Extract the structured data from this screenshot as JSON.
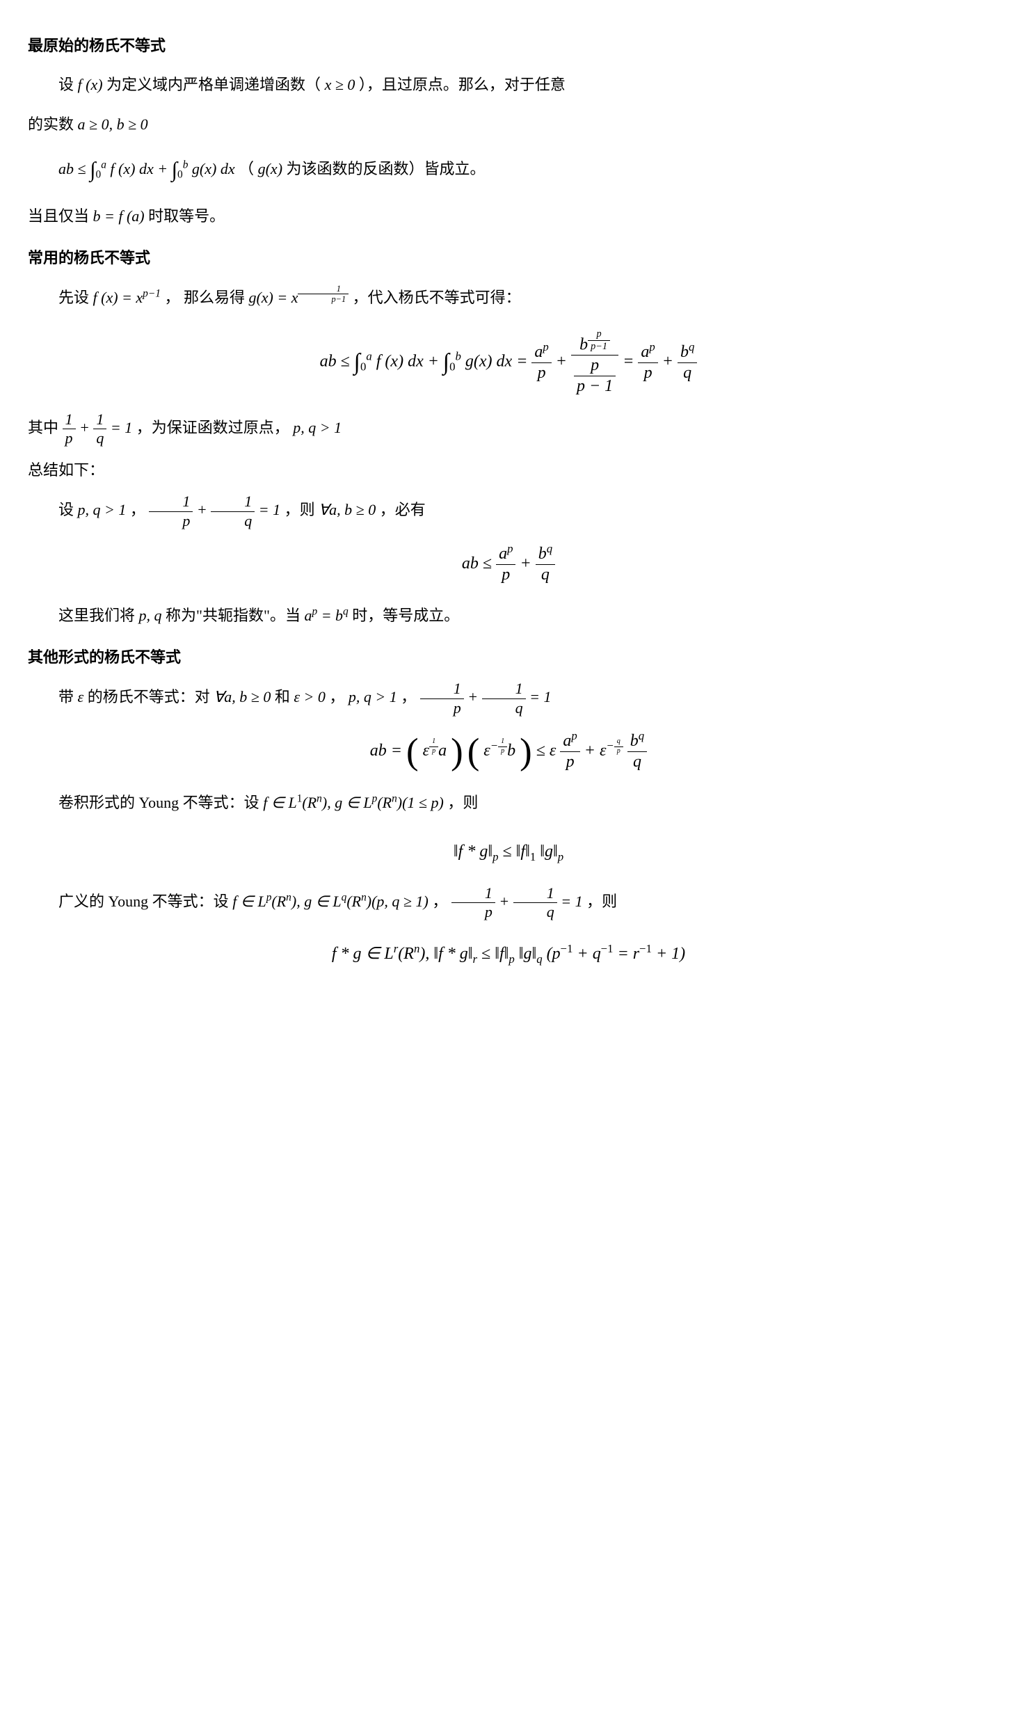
{
  "sec1_title": "最原始的杨氏不等式",
  "sec1_p1_a": "设 ",
  "sec1_p1_b": " 为定义域内严格单调递增函数（",
  "sec1_p1_c": "），且过原点。那么，对于任意",
  "sec1_p2_a": "的实数 ",
  "sec1_p3_a": " （",
  "sec1_p3_b": " 为该函数的反函数）皆成立。",
  "sec1_p4_a": "当且仅当 ",
  "sec1_p4_b": " 时取等号。",
  "sec2_title": "常用的杨氏不等式",
  "sec2_p1_a": "先设 ",
  "sec2_p1_b": "， 那么易得 ",
  "sec2_p1_c": "，代入杨氏不等式可得：",
  "sec2_p2_a": "其中 ",
  "sec2_p2_b": "，为保证函数过原点， ",
  "sec2_p3": "总结如下：",
  "sec2_p4_a": "设 ",
  "sec2_p4_b": "， ",
  "sec2_p4_c": "，则 ",
  "sec2_p4_d": "，必有",
  "sec2_p5_a": "这里我们将 ",
  "sec2_p5_b": " 称为\"共轭指数\"。当 ",
  "sec2_p5_c": " 时，等号成立。",
  "sec3_title": "其他形式的杨氏不等式",
  "sec3_p1_a": "带 ",
  "sec3_p1_b": " 的杨氏不等式：对 ",
  "sec3_p1_c": " 和 ",
  "sec3_p1_d": "， ",
  "sec3_p1_e": "， ",
  "sec3_p2_a": "卷积形式的 Young 不等式：设 ",
  "sec3_p2_b": "，则",
  "sec3_p3_a": "广义的 Young 不等式：设 ",
  "sec3_p3_b": "， ",
  "sec3_p3_c": "，则",
  "m": {
    "fx": "f (x)",
    "xge0": "x ≥ 0",
    "abge0": "a ≥ 0, b ≥ 0",
    "gx": "g(x)",
    "bfa": "b = f (a)",
    "fxp": "f (x) = x",
    "pm1": "p−1",
    "gxeq": "g(x) = x",
    "pq": "p, q",
    "pqgt1": "p, q > 1",
    "abge0_2": "∀a, b ≥ 0",
    "apbq": "a",
    "eps": "ε",
    "epsgt0": "ε > 0",
    "L1Rn": "f ∈ L",
    "Rn": "(R",
    "gLp": ", g ∈ L",
    "onep": "(1 ≤ p)",
    "pqge1": "(p, q ≥ 1)",
    "conv": "f * g ∈ L",
    "pinvqinv": "(p",
    "rinv": " + q",
    "eq_r": " = r",
    "plus1": " + 1)"
  }
}
